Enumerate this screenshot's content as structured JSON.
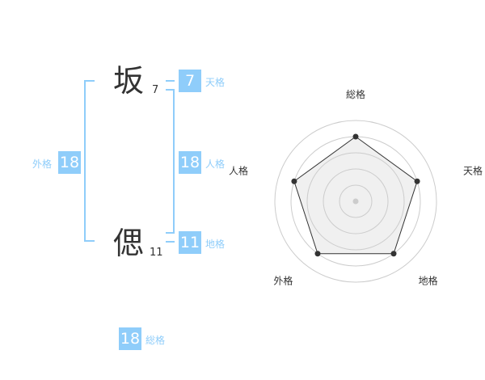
{
  "name": {
    "chars": [
      {
        "char": "坂",
        "strokes": "7"
      },
      {
        "char": "偲",
        "strokes": "11"
      }
    ]
  },
  "kaku": {
    "tenkaku": {
      "label": "天格",
      "value": "7"
    },
    "jinkaku": {
      "label": "人格",
      "value": "18"
    },
    "chikaku": {
      "label": "地格",
      "value": "11"
    },
    "gaikaku": {
      "label": "外格",
      "value": "18"
    },
    "soukaku": {
      "label": "総格",
      "value": "18"
    }
  },
  "colors": {
    "accent": "#8fcdfa",
    "text": "#333333",
    "radar_fill": "#f0f0f0",
    "ring": "#cccccc"
  },
  "chart_data": {
    "type": "radar",
    "axes": [
      "総格",
      "天格",
      "地格",
      "外格",
      "人格"
    ],
    "values": [
      4,
      4,
      4,
      4,
      4
    ],
    "range": [
      0,
      5
    ],
    "rings": 5
  }
}
